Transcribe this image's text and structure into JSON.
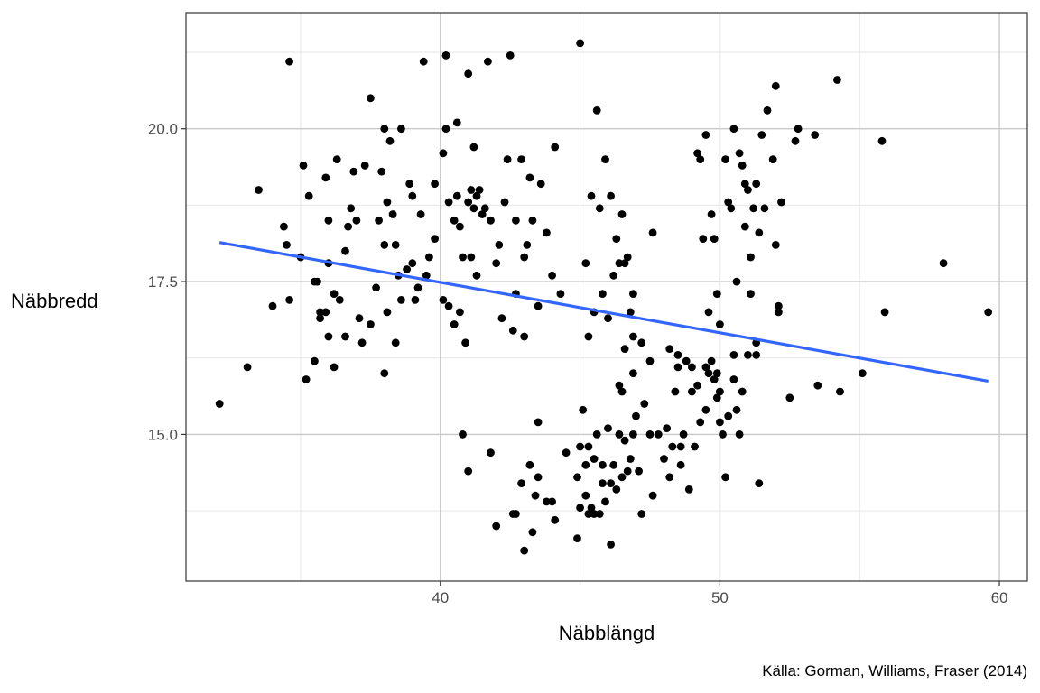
{
  "chart_data": {
    "type": "scatter",
    "title": "",
    "xlabel": "Näbblängd",
    "ylabel": "Näbbredd",
    "caption": "Källa: Gorman, Williams, Fraser (2014)",
    "xlim": [
      30.9,
      61.0
    ],
    "ylim": [
      12.6,
      21.9
    ],
    "x_ticks": [
      40,
      50,
      60
    ],
    "x_tick_labels": [
      "40",
      "50",
      "60"
    ],
    "y_ticks": [
      15,
      17.5,
      20
    ],
    "y_tick_labels": [
      "15.0",
      "17.5",
      "20.0"
    ],
    "x_minor_ticks": [
      35,
      45,
      55
    ],
    "y_minor_ticks": [
      13.75,
      16.25,
      18.75,
      21.25
    ],
    "grid": true,
    "legend": "none",
    "colors": {
      "point": "#000000",
      "trend": "#3366ff",
      "grid_major": "#c8c8c8",
      "grid_minor": "#e6e6e6",
      "panel_border": "#333333"
    },
    "trend_line": {
      "x": [
        32.1,
        59.6
      ],
      "y": [
        18.14,
        15.87
      ]
    },
    "points": [
      [
        32.1,
        15.5
      ],
      [
        33.1,
        16.1
      ],
      [
        33.5,
        19.0
      ],
      [
        34.0,
        17.1
      ],
      [
        34.4,
        18.4
      ],
      [
        34.5,
        18.1
      ],
      [
        34.6,
        21.1
      ],
      [
        34.6,
        17.2
      ],
      [
        35.0,
        17.9
      ],
      [
        35.1,
        19.4
      ],
      [
        35.2,
        15.9
      ],
      [
        35.3,
        18.9
      ],
      [
        35.5,
        17.5
      ],
      [
        35.6,
        17.5
      ],
      [
        35.5,
        16.2
      ],
      [
        35.7,
        16.9
      ],
      [
        35.7,
        17.0
      ],
      [
        35.9,
        17.0
      ],
      [
        35.9,
        19.2
      ],
      [
        36.0,
        17.8
      ],
      [
        36.0,
        16.6
      ],
      [
        36.0,
        18.5
      ],
      [
        36.2,
        17.3
      ],
      [
        36.2,
        16.1
      ],
      [
        36.3,
        19.5
      ],
      [
        36.4,
        17.2
      ],
      [
        36.6,
        18.0
      ],
      [
        36.6,
        16.6
      ],
      [
        36.7,
        18.4
      ],
      [
        36.8,
        18.7
      ],
      [
        36.9,
        19.3
      ],
      [
        37.0,
        18.5
      ],
      [
        37.1,
        16.9
      ],
      [
        37.2,
        16.5
      ],
      [
        37.3,
        19.4
      ],
      [
        37.5,
        16.8
      ],
      [
        37.5,
        20.5
      ],
      [
        37.7,
        17.4
      ],
      [
        37.8,
        18.5
      ],
      [
        37.9,
        19.3
      ],
      [
        38.0,
        18.1
      ],
      [
        38.0,
        20.0
      ],
      [
        38.0,
        16.0
      ],
      [
        38.1,
        18.8
      ],
      [
        38.1,
        17.0
      ],
      [
        38.2,
        19.8
      ],
      [
        38.3,
        18.6
      ],
      [
        38.4,
        18.1
      ],
      [
        38.4,
        16.5
      ],
      [
        38.5,
        17.6
      ],
      [
        38.6,
        20.0
      ],
      [
        38.6,
        17.2
      ],
      [
        38.8,
        17.7
      ],
      [
        38.9,
        19.1
      ],
      [
        39.0,
        17.8
      ],
      [
        39.0,
        18.9
      ],
      [
        39.1,
        17.2
      ],
      [
        39.2,
        17.4
      ],
      [
        39.4,
        21.1
      ],
      [
        39.3,
        18.6
      ],
      [
        39.5,
        17.6
      ],
      [
        39.6,
        17.9
      ],
      [
        39.8,
        18.2
      ],
      [
        39.8,
        19.1
      ],
      [
        40.1,
        19.6
      ],
      [
        40.1,
        17.2
      ],
      [
        40.2,
        21.2
      ],
      [
        40.2,
        20.0
      ],
      [
        40.3,
        18.8
      ],
      [
        40.3,
        17.1
      ],
      [
        40.5,
        18.5
      ],
      [
        40.5,
        16.8
      ],
      [
        40.6,
        20.1
      ],
      [
        40.6,
        18.9
      ],
      [
        40.7,
        17.0
      ],
      [
        40.7,
        18.4
      ],
      [
        40.8,
        17.9
      ],
      [
        40.9,
        16.5
      ],
      [
        41.0,
        18.8
      ],
      [
        41.0,
        20.9
      ],
      [
        41.1,
        19.0
      ],
      [
        41.1,
        17.9
      ],
      [
        41.2,
        18.7
      ],
      [
        41.2,
        19.7
      ],
      [
        41.3,
        18.9
      ],
      [
        41.3,
        17.6
      ],
      [
        41.4,
        19.0
      ],
      [
        41.5,
        18.6
      ],
      [
        41.6,
        18.7
      ],
      [
        41.7,
        21.1
      ],
      [
        41.8,
        18.5
      ],
      [
        42.0,
        17.8
      ],
      [
        42.1,
        18.1
      ],
      [
        42.2,
        16.9
      ],
      [
        42.3,
        18.8
      ],
      [
        42.4,
        19.5
      ],
      [
        42.5,
        21.2
      ],
      [
        42.6,
        16.7
      ],
      [
        42.7,
        18.5
      ],
      [
        42.7,
        17.3
      ],
      [
        42.9,
        19.5
      ],
      [
        43.0,
        17.9
      ],
      [
        43.0,
        16.6
      ],
      [
        43.1,
        18.1
      ],
      [
        43.2,
        19.2
      ],
      [
        43.3,
        18.5
      ],
      [
        43.5,
        17.1
      ],
      [
        43.6,
        19.1
      ],
      [
        43.8,
        18.3
      ],
      [
        44.0,
        17.6
      ],
      [
        44.1,
        19.7
      ],
      [
        44.3,
        17.3
      ],
      [
        45.0,
        21.4
      ],
      [
        45.2,
        17.8
      ],
      [
        45.3,
        16.6
      ],
      [
        45.4,
        18.9
      ],
      [
        45.5,
        17.0
      ],
      [
        45.6,
        20.3
      ],
      [
        45.7,
        18.7
      ],
      [
        45.8,
        17.3
      ],
      [
        45.9,
        19.5
      ],
      [
        46.0,
        16.9
      ],
      [
        46.1,
        18.9
      ],
      [
        46.2,
        17.6
      ],
      [
        46.3,
        18.2
      ],
      [
        46.4,
        17.8
      ],
      [
        46.5,
        18.6
      ],
      [
        46.6,
        17.8
      ],
      [
        46.7,
        17.9
      ],
      [
        46.8,
        17.0
      ],
      [
        46.9,
        17.3
      ],
      [
        47.2,
        16.5
      ],
      [
        47.6,
        18.3
      ],
      [
        46.6,
        16.4
      ],
      [
        46.9,
        16.0
      ],
      [
        40.8,
        15.0
      ],
      [
        41.0,
        14.4
      ],
      [
        41.8,
        14.7
      ],
      [
        42.0,
        13.5
      ],
      [
        42.6,
        13.7
      ],
      [
        42.7,
        13.7
      ],
      [
        42.9,
        14.2
      ],
      [
        43.0,
        13.1
      ],
      [
        43.2,
        14.5
      ],
      [
        43.4,
        14.0
      ],
      [
        43.3,
        13.4
      ],
      [
        43.5,
        14.3
      ],
      [
        43.5,
        15.2
      ],
      [
        43.8,
        13.9
      ],
      [
        44.0,
        13.9
      ],
      [
        44.1,
        13.6
      ],
      [
        44.5,
        14.7
      ],
      [
        44.9,
        13.3
      ],
      [
        45.0,
        13.8
      ],
      [
        45.1,
        15.4
      ],
      [
        45.2,
        14.5
      ],
      [
        45.3,
        14.8
      ],
      [
        45.3,
        13.7
      ],
      [
        45.4,
        13.8
      ],
      [
        45.5,
        14.6
      ],
      [
        45.5,
        13.7
      ],
      [
        45.6,
        15.0
      ],
      [
        45.7,
        13.7
      ],
      [
        45.8,
        14.5
      ],
      [
        45.8,
        14.2
      ],
      [
        45.9,
        13.9
      ],
      [
        46.0,
        15.1
      ],
      [
        46.1,
        14.2
      ],
      [
        46.1,
        13.2
      ],
      [
        46.2,
        14.5
      ],
      [
        46.3,
        14.1
      ],
      [
        46.4,
        15.8
      ],
      [
        46.4,
        15.0
      ],
      [
        46.5,
        14.3
      ],
      [
        46.6,
        14.9
      ],
      [
        46.7,
        14.4
      ],
      [
        46.8,
        14.6
      ],
      [
        46.9,
        15.0
      ],
      [
        47.0,
        15.3
      ],
      [
        47.2,
        13.7
      ],
      [
        47.3,
        15.5
      ],
      [
        47.5,
        15.0
      ],
      [
        47.6,
        14.0
      ],
      [
        47.8,
        15.0
      ],
      [
        48.0,
        14.6
      ],
      [
        48.1,
        15.1
      ],
      [
        48.2,
        14.3
      ],
      [
        48.3,
        14.8
      ],
      [
        48.4,
        15.7
      ],
      [
        48.5,
        16.1
      ],
      [
        48.6,
        14.5
      ],
      [
        48.7,
        15.0
      ],
      [
        48.8,
        16.2
      ],
      [
        48.9,
        14.1
      ],
      [
        49.0,
        15.7
      ],
      [
        49.1,
        14.8
      ],
      [
        49.2,
        15.8
      ],
      [
        49.3,
        15.2
      ],
      [
        49.5,
        16.1
      ],
      [
        49.5,
        15.4
      ],
      [
        49.7,
        16.2
      ],
      [
        49.8,
        15.9
      ],
      [
        49.9,
        16.0
      ],
      [
        50.0,
        15.2
      ],
      [
        50.1,
        15.0
      ],
      [
        50.2,
        14.3
      ],
      [
        50.3,
        15.3
      ],
      [
        50.5,
        15.9
      ],
      [
        50.6,
        15.4
      ],
      [
        50.7,
        15.0
      ],
      [
        50.8,
        15.7
      ],
      [
        51.0,
        16.3
      ],
      [
        51.3,
        16.3
      ],
      [
        51.4,
        14.2
      ],
      [
        45.0,
        14.8
      ],
      [
        44.9,
        14.3
      ],
      [
        45.2,
        14.0
      ],
      [
        46.5,
        15.7
      ],
      [
        47.1,
        14.4
      ],
      [
        48.6,
        14.8
      ],
      [
        49.9,
        15.6
      ],
      [
        46.9,
        16.6
      ],
      [
        47.5,
        16.2
      ],
      [
        48.2,
        16.4
      ],
      [
        48.5,
        16.3
      ],
      [
        49.0,
        16.1
      ],
      [
        49.6,
        16.0
      ],
      [
        50.0,
        15.7
      ],
      [
        49.2,
        19.6
      ],
      [
        49.4,
        18.2
      ],
      [
        49.5,
        19.9
      ],
      [
        49.6,
        17.0
      ],
      [
        49.7,
        18.6
      ],
      [
        49.8,
        18.2
      ],
      [
        49.9,
        17.3
      ],
      [
        50.0,
        16.8
      ],
      [
        50.2,
        19.5
      ],
      [
        50.3,
        18.8
      ],
      [
        50.4,
        18.7
      ],
      [
        50.5,
        20.0
      ],
      [
        50.6,
        17.5
      ],
      [
        50.7,
        19.6
      ],
      [
        50.8,
        19.4
      ],
      [
        50.9,
        18.4
      ],
      [
        51.0,
        19.0
      ],
      [
        51.1,
        17.3
      ],
      [
        51.2,
        18.7
      ],
      [
        51.3,
        19.1
      ],
      [
        51.4,
        18.3
      ],
      [
        51.5,
        19.9
      ],
      [
        51.6,
        18.7
      ],
      [
        51.7,
        20.3
      ],
      [
        51.9,
        19.5
      ],
      [
        52.0,
        18.1
      ],
      [
        52.0,
        20.7
      ],
      [
        52.1,
        17.0
      ],
      [
        52.2,
        18.8
      ],
      [
        52.5,
        15.6
      ],
      [
        52.7,
        19.8
      ],
      [
        52.8,
        20.0
      ],
      [
        53.4,
        19.9
      ],
      [
        53.5,
        15.8
      ],
      [
        54.2,
        20.8
      ],
      [
        54.3,
        15.7
      ],
      [
        55.1,
        16.0
      ],
      [
        55.8,
        19.8
      ],
      [
        55.9,
        17.0
      ],
      [
        58.0,
        17.8
      ],
      [
        59.6,
        17.0
      ],
      [
        51.1,
        17.9
      ],
      [
        50.5,
        16.3
      ],
      [
        51.3,
        16.5
      ],
      [
        52.1,
        17.1
      ],
      [
        50.9,
        19.1
      ],
      [
        49.3,
        19.5
      ]
    ]
  }
}
